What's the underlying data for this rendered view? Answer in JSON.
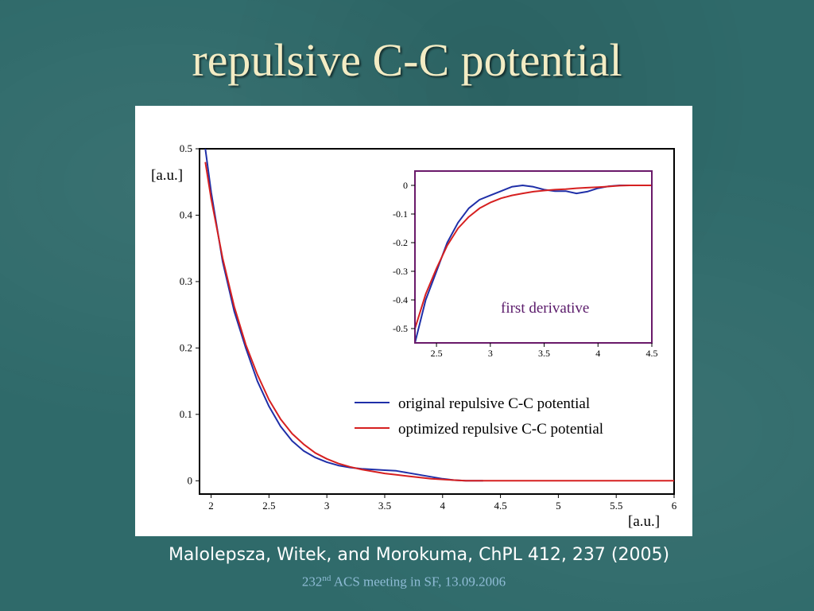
{
  "slide": {
    "title": "repulsive C-C potential",
    "citation": "Malolepsza, Witek, and Morokuma, ChPL 412, 237 (2005)",
    "footer_number": "232",
    "footer_sup": "nd",
    "footer_rest": " ACS meeting in SF, 13.09.2006"
  },
  "chart_data": [
    {
      "type": "line",
      "title": "",
      "xlabel": "[a.u.]",
      "ylabel": "[a.u.]",
      "xlim": [
        1.9,
        6
      ],
      "ylim": [
        -0.02,
        0.5
      ],
      "xticks": [
        "2",
        "2.5",
        "3",
        "3.5",
        "4",
        "4.5",
        "5",
        "5.5",
        "6"
      ],
      "yticks": [
        "0",
        "0.1",
        "0.2",
        "0.3",
        "0.4",
        "0.5"
      ],
      "legend_position": "lower-right",
      "series": [
        {
          "name": "original repulsive C-C potential",
          "color": "#1f2fa8",
          "points": [
            [
              1.95,
              0.5
            ],
            [
              2.0,
              0.435
            ],
            [
              2.1,
              0.33
            ],
            [
              2.2,
              0.255
            ],
            [
              2.3,
              0.2
            ],
            [
              2.4,
              0.15
            ],
            [
              2.5,
              0.112
            ],
            [
              2.6,
              0.082
            ],
            [
              2.7,
              0.06
            ],
            [
              2.8,
              0.045
            ],
            [
              2.9,
              0.035
            ],
            [
              3.0,
              0.028
            ],
            [
              3.1,
              0.023
            ],
            [
              3.2,
              0.02
            ],
            [
              3.3,
              0.018
            ],
            [
              3.4,
              0.017
            ],
            [
              3.5,
              0.016
            ],
            [
              3.6,
              0.015
            ],
            [
              3.7,
              0.012
            ],
            [
              3.8,
              0.009
            ],
            [
              3.9,
              0.006
            ],
            [
              4.0,
              0.003
            ],
            [
              4.1,
              0.001
            ],
            [
              4.2,
              0
            ],
            [
              4.35,
              0
            ]
          ]
        },
        {
          "name": "optimized repulsive C-C potential",
          "color": "#d62020",
          "points": [
            [
              1.95,
              0.48
            ],
            [
              2.0,
              0.425
            ],
            [
              2.1,
              0.335
            ],
            [
              2.2,
              0.262
            ],
            [
              2.3,
              0.205
            ],
            [
              2.4,
              0.16
            ],
            [
              2.5,
              0.122
            ],
            [
              2.6,
              0.093
            ],
            [
              2.7,
              0.071
            ],
            [
              2.8,
              0.055
            ],
            [
              2.9,
              0.042
            ],
            [
              3.0,
              0.033
            ],
            [
              3.1,
              0.026
            ],
            [
              3.2,
              0.021
            ],
            [
              3.3,
              0.017
            ],
            [
              3.4,
              0.014
            ],
            [
              3.5,
              0.011
            ],
            [
              3.6,
              0.009
            ],
            [
              3.7,
              0.007
            ],
            [
              3.8,
              0.005
            ],
            [
              3.9,
              0.003
            ],
            [
              4.0,
              0.002
            ],
            [
              4.1,
              0.001
            ],
            [
              4.2,
              0
            ],
            [
              6.0,
              0
            ]
          ]
        }
      ]
    },
    {
      "type": "line",
      "title": "first derivative",
      "xlim": [
        2.3,
        4.5
      ],
      "ylim": [
        -0.55,
        0.05
      ],
      "xticks": [
        "2.5",
        "3",
        "3.5",
        "4",
        "4.5"
      ],
      "yticks": [
        "0",
        "-0.1",
        "-0.2",
        "-0.3",
        "-0.4",
        "-0.5"
      ],
      "series": [
        {
          "color": "#1f2fa8",
          "points": [
            [
              2.3,
              -0.55
            ],
            [
              2.4,
              -0.4
            ],
            [
              2.5,
              -0.3
            ],
            [
              2.6,
              -0.2
            ],
            [
              2.7,
              -0.13
            ],
            [
              2.8,
              -0.08
            ],
            [
              2.9,
              -0.05
            ],
            [
              3.0,
              -0.035
            ],
            [
              3.1,
              -0.02
            ],
            [
              3.2,
              -0.005
            ],
            [
              3.3,
              0.0
            ],
            [
              3.4,
              -0.005
            ],
            [
              3.5,
              -0.015
            ],
            [
              3.6,
              -0.02
            ],
            [
              3.7,
              -0.02
            ],
            [
              3.8,
              -0.028
            ],
            [
              3.9,
              -0.022
            ],
            [
              4.0,
              -0.01
            ],
            [
              4.1,
              -0.003
            ],
            [
              4.2,
              0
            ],
            [
              4.5,
              0
            ]
          ]
        },
        {
          "color": "#d62020",
          "points": [
            [
              2.3,
              -0.5
            ],
            [
              2.4,
              -0.38
            ],
            [
              2.5,
              -0.29
            ],
            [
              2.6,
              -0.21
            ],
            [
              2.7,
              -0.15
            ],
            [
              2.8,
              -0.11
            ],
            [
              2.9,
              -0.08
            ],
            [
              3.0,
              -0.06
            ],
            [
              3.1,
              -0.045
            ],
            [
              3.2,
              -0.035
            ],
            [
              3.3,
              -0.028
            ],
            [
              3.4,
              -0.022
            ],
            [
              3.5,
              -0.018
            ],
            [
              3.6,
              -0.015
            ],
            [
              3.7,
              -0.013
            ],
            [
              3.8,
              -0.01
            ],
            [
              3.9,
              -0.008
            ],
            [
              4.0,
              -0.006
            ],
            [
              4.1,
              -0.004
            ],
            [
              4.2,
              -0.001
            ],
            [
              4.3,
              0
            ],
            [
              4.5,
              0
            ]
          ]
        }
      ]
    }
  ]
}
